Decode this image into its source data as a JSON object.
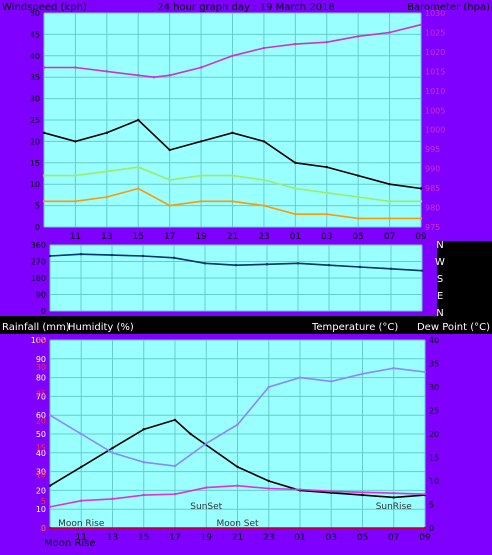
{
  "chart_data": [
    {
      "type": "line",
      "title": "24 hour graph day : 19 March 2018",
      "ylabel": "Windspeed (kph)",
      "ylabel_right": "Barometer (hpa)",
      "background": "#99ffff",
      "frame": "#7f00ff",
      "x_ticks": [
        "11",
        "13",
        "15",
        "17",
        "19",
        "21",
        "23",
        "01",
        "03",
        "05",
        "07",
        "09"
      ],
      "y_ticks_left": [
        "0",
        "5",
        "10",
        "15",
        "20",
        "25",
        "30",
        "35",
        "40",
        "45",
        "50"
      ],
      "y_ticks_right": [
        "975",
        "980",
        "985",
        "990",
        "995",
        "1000",
        "1005",
        "1010",
        "1015",
        "1020",
        "1025",
        "1030"
      ],
      "ylim": [
        0,
        50
      ],
      "ylim_right": [
        975,
        1030
      ],
      "series": [
        {
          "color": "#cc33cc",
          "axis": "right",
          "x": [
            "09",
            "11",
            "13",
            "15",
            "16",
            "17",
            "19",
            "21",
            "23",
            "01",
            "03",
            "05",
            "07",
            "09"
          ],
          "values": [
            1016,
            1016,
            1015,
            1014,
            1013.5,
            1014,
            1016,
            1019,
            1021,
            1022,
            1022.5,
            1024,
            1025,
            1027
          ]
        },
        {
          "color": "#000000",
          "axis": "left",
          "x": [
            "09",
            "11",
            "13",
            "15",
            "17",
            "19",
            "21",
            "23",
            "01",
            "03",
            "05",
            "07",
            "09"
          ],
          "values": [
            22,
            20,
            22,
            25,
            18,
            20,
            22,
            20,
            15,
            14,
            12,
            10,
            9
          ]
        },
        {
          "color": "#99ee66",
          "axis": "left",
          "x": [
            "09",
            "11",
            "13",
            "15",
            "17",
            "19",
            "21",
            "23",
            "01",
            "03",
            "05",
            "07",
            "09"
          ],
          "values": [
            12,
            12,
            13,
            14,
            11,
            12,
            12,
            11,
            9,
            8,
            7,
            6,
            6
          ]
        },
        {
          "color": "#ff9900",
          "axis": "left",
          "x": [
            "09",
            "11",
            "13",
            "15",
            "17",
            "19",
            "21",
            "23",
            "01",
            "03",
            "05",
            "07",
            "09"
          ],
          "values": [
            6,
            6,
            7,
            9,
            5,
            6,
            6,
            5,
            3,
            3,
            2,
            2,
            2
          ]
        }
      ]
    },
    {
      "type": "line",
      "background": "#99ffff",
      "frame": "#7f00ff",
      "y_ticks_left": [
        "0",
        "90",
        "180",
        "270",
        "360"
      ],
      "right_labels": [
        "N",
        "W",
        "S",
        "E",
        "N"
      ],
      "ylim": [
        0,
        360
      ],
      "series": [
        {
          "color": "#003366",
          "x": [
            "09",
            "11",
            "13",
            "15",
            "17",
            "19",
            "21",
            "23",
            "01",
            "03",
            "05",
            "07",
            "09"
          ],
          "values": [
            300,
            310,
            305,
            300,
            290,
            260,
            250,
            255,
            260,
            250,
            240,
            230,
            220
          ]
        }
      ]
    },
    {
      "type": "line",
      "ylabel": "Rainfall (mm)",
      "ylabel_2": "Humidity (%)",
      "ylabel_right": "Temperature (°C)",
      "ylabel_right_2": "Dew Point (°C)",
      "background": "#99ffff",
      "frame": "#7f00ff",
      "x_ticks": [
        "11",
        "13",
        "15",
        "17",
        "19",
        "21",
        "23",
        "01",
        "03",
        "05",
        "07",
        "09"
      ],
      "y_ticks_left": [
        "0",
        "10",
        "20",
        "30",
        "40",
        "50",
        "60",
        "70",
        "80",
        "90",
        "100"
      ],
      "y_ticks_left_2": [
        "0",
        "5",
        "10",
        "15",
        "20",
        "25",
        "30",
        "35"
      ],
      "y_ticks_right": [
        "0",
        "5",
        "10",
        "15",
        "20",
        "25",
        "30",
        "35",
        "40"
      ],
      "ylim": [
        0,
        100
      ],
      "ylim_right": [
        0,
        40
      ],
      "series": [
        {
          "color": "#000000",
          "axis": "right",
          "x": [
            "09",
            "11",
            "13",
            "15",
            "17",
            "18",
            "21",
            "23",
            "01",
            "03",
            "05",
            "07",
            "09"
          ],
          "values": [
            9,
            13,
            17,
            21,
            23,
            20,
            13,
            10,
            8,
            7.5,
            7,
            6.5,
            7
          ]
        },
        {
          "color": "#8888ff",
          "axis": "left",
          "x": [
            "09",
            "11",
            "13",
            "15",
            "17",
            "19",
            "21",
            "23",
            "01",
            "03",
            "05",
            "07",
            "09"
          ],
          "values": [
            60,
            50,
            40,
            35,
            33,
            45,
            55,
            75,
            80,
            78,
            82,
            85,
            83
          ]
        },
        {
          "color": "#dd33dd",
          "axis": "right",
          "x": [
            "09",
            "11",
            "13",
            "15",
            "17",
            "19",
            "21",
            "23",
            "01",
            "03",
            "05",
            "07",
            "09"
          ],
          "values": [
            4.5,
            5.8,
            6.2,
            7.0,
            7.2,
            8.6,
            9.0,
            8.4,
            8.2,
            7.8,
            7.6,
            7.4,
            7.2
          ]
        },
        {
          "color": "#cc0000",
          "axis": "left",
          "x": [
            "09",
            "09"
          ],
          "values": [
            0,
            0
          ]
        }
      ],
      "annotations": [
        {
          "text": "SunSet",
          "x": "19"
        },
        {
          "text": "SunRise",
          "x": "07"
        },
        {
          "text": "Moon Rise",
          "x": "11"
        },
        {
          "text": "Moon Set",
          "x": "21"
        }
      ],
      "moon_rise_label": "Moon Rise",
      "moon_rise_hour": "11"
    }
  ]
}
